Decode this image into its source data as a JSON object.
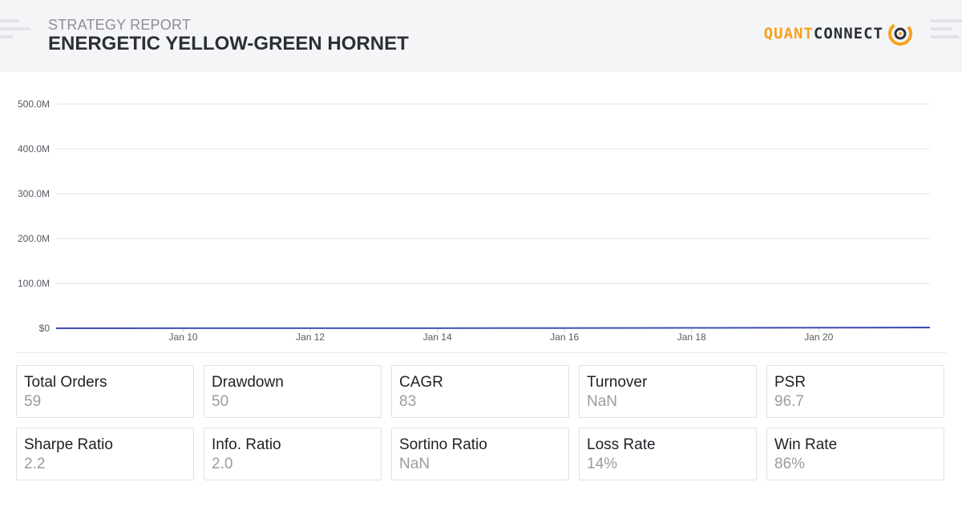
{
  "header": {
    "report_label": "STRATEGY REPORT",
    "strategy_name": "ENERGETIC YELLOW-GREEN HORNET",
    "logo": {
      "part1": "QUANT",
      "part2": "CONNECT",
      "icon": "quantconnect-logo-icon"
    }
  },
  "colors": {
    "header_bg": "#f4f5f7",
    "line": "#3f51b5",
    "logo_accent": "#f5a21d",
    "grid": "#e6e6ea"
  },
  "chart_data": {
    "type": "line",
    "title": "",
    "xlabel": "",
    "ylabel": "",
    "y_ticks": [
      "$0",
      "100.0M",
      "200.0M",
      "300.0M",
      "400.0M",
      "500.0M"
    ],
    "x_ticks": [
      "Jan 10",
      "Jan 12",
      "Jan 14",
      "Jan 16",
      "Jan 18",
      "Jan 20"
    ],
    "ylim": [
      0,
      500000000
    ],
    "xlim": [
      "2024-01-08",
      "2024-01-21T18:00"
    ],
    "grid": true,
    "series": [
      {
        "x": [
          "2024-01-08",
          "2024-01-09",
          "2024-01-10",
          "2024-01-11",
          "2024-01-12",
          "2024-01-13",
          "2024-01-14",
          "2024-01-15",
          "2024-01-16",
          "2024-01-17",
          "2024-01-18",
          "2024-01-19",
          "2024-01-20",
          "2024-01-21",
          "2024-01-21T18:00"
        ],
        "values": [
          100000,
          110000,
          130000,
          160000,
          200000,
          250000,
          320000,
          420000,
          550000,
          700000,
          880000,
          1100000,
          1350000,
          1650000,
          1900000
        ]
      }
    ]
  },
  "stats": [
    {
      "label": "Total Orders",
      "value": "59"
    },
    {
      "label": "Drawdown",
      "value": "50"
    },
    {
      "label": "CAGR",
      "value": "83"
    },
    {
      "label": "Turnover",
      "value": "NaN"
    },
    {
      "label": "PSR",
      "value": "96.7"
    },
    {
      "label": "Sharpe Ratio",
      "value": "2.2"
    },
    {
      "label": "Info. Ratio",
      "value": "2.0"
    },
    {
      "label": "Sortino Ratio",
      "value": "NaN"
    },
    {
      "label": "Loss Rate",
      "value": "14%"
    },
    {
      "label": "Win Rate",
      "value": "86%"
    }
  ]
}
